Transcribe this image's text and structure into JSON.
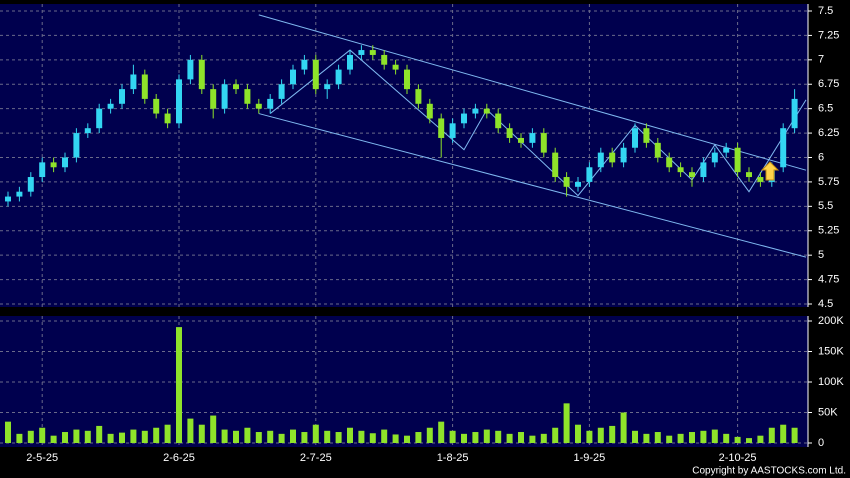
{
  "chart_data": {
    "type": "candlestick",
    "categories": [
      null,
      null,
      null,
      "2-5-25",
      null,
      null,
      null,
      null,
      null,
      null,
      null,
      null,
      null,
      null,
      null,
      "2-6-25",
      null,
      null,
      null,
      null,
      null,
      null,
      null,
      null,
      null,
      null,
      null,
      "2-7-25",
      null,
      null,
      null,
      null,
      null,
      null,
      null,
      null,
      null,
      null,
      null,
      "1-8-25",
      null,
      null,
      null,
      null,
      null,
      null,
      null,
      null,
      null,
      null,
      null,
      "1-9-25",
      null,
      null,
      null,
      null,
      null,
      null,
      null,
      null,
      null,
      null,
      null,
      null,
      "2-10-25",
      null,
      null,
      null,
      null,
      null
    ],
    "open": [
      5.55,
      5.6,
      5.65,
      5.8,
      5.95,
      5.9,
      6.0,
      6.25,
      6.3,
      6.5,
      6.55,
      6.7,
      6.85,
      6.6,
      6.45,
      6.35,
      6.8,
      7.0,
      6.7,
      6.5,
      6.75,
      6.7,
      6.55,
      6.5,
      6.6,
      6.75,
      6.9,
      7.0,
      6.7,
      6.75,
      6.9,
      7.05,
      7.1,
      7.05,
      6.95,
      6.9,
      6.7,
      6.55,
      6.4,
      6.2,
      6.35,
      6.45,
      6.5,
      6.45,
      6.3,
      6.2,
      6.15,
      6.25,
      6.05,
      5.8,
      5.7,
      5.75,
      5.9,
      6.05,
      5.95,
      6.1,
      6.3,
      6.15,
      6.0,
      5.9,
      5.85,
      5.8,
      5.95,
      6.05,
      6.1,
      5.85,
      5.8,
      5.75,
      5.9,
      6.3
    ],
    "high": [
      5.65,
      5.7,
      5.85,
      6.0,
      6.0,
      6.05,
      6.3,
      6.35,
      6.55,
      6.6,
      6.75,
      6.95,
      6.9,
      6.65,
      6.5,
      6.85,
      7.05,
      7.05,
      6.75,
      6.8,
      6.8,
      6.75,
      6.6,
      6.65,
      6.8,
      6.95,
      7.05,
      7.05,
      6.8,
      6.95,
      7.1,
      7.15,
      7.15,
      7.1,
      7.0,
      6.95,
      6.75,
      6.6,
      6.45,
      6.4,
      6.5,
      6.55,
      6.55,
      6.5,
      6.35,
      6.25,
      6.3,
      6.3,
      6.1,
      5.85,
      5.8,
      5.95,
      6.1,
      6.1,
      6.15,
      6.35,
      6.35,
      6.2,
      6.05,
      5.95,
      5.9,
      6.0,
      6.1,
      6.15,
      6.15,
      5.9,
      5.85,
      5.95,
      6.35,
      6.7
    ],
    "low": [
      5.5,
      5.55,
      5.6,
      5.75,
      5.85,
      5.85,
      5.95,
      6.2,
      6.25,
      6.45,
      6.5,
      6.65,
      6.55,
      6.4,
      6.3,
      6.3,
      6.75,
      6.65,
      6.4,
      6.45,
      6.65,
      6.5,
      6.45,
      6.45,
      6.55,
      6.7,
      6.85,
      6.65,
      6.6,
      6.7,
      6.85,
      7.0,
      7.0,
      6.9,
      6.85,
      6.65,
      6.5,
      6.35,
      6.0,
      6.15,
      6.3,
      6.4,
      6.4,
      6.25,
      6.15,
      6.1,
      6.1,
      6.0,
      5.75,
      5.6,
      5.65,
      5.7,
      5.85,
      5.9,
      5.9,
      6.05,
      6.1,
      5.95,
      5.85,
      5.8,
      5.7,
      5.75,
      5.9,
      6.0,
      5.8,
      5.75,
      5.7,
      5.7,
      5.85,
      6.25
    ],
    "close": [
      5.6,
      5.65,
      5.8,
      5.95,
      5.9,
      6.0,
      6.25,
      6.3,
      6.5,
      6.55,
      6.7,
      6.85,
      6.6,
      6.45,
      6.35,
      6.8,
      7.0,
      6.7,
      6.5,
      6.75,
      6.7,
      6.55,
      6.5,
      6.6,
      6.75,
      6.9,
      7.0,
      6.7,
      6.75,
      6.9,
      7.05,
      7.1,
      7.05,
      6.95,
      6.9,
      6.7,
      6.55,
      6.4,
      6.2,
      6.35,
      6.45,
      6.5,
      6.45,
      6.3,
      6.2,
      6.15,
      6.25,
      6.05,
      5.8,
      5.7,
      5.75,
      5.9,
      6.05,
      5.95,
      6.1,
      6.3,
      6.15,
      6.0,
      5.9,
      5.85,
      5.8,
      5.95,
      6.05,
      6.1,
      5.85,
      5.8,
      5.75,
      5.9,
      6.3,
      6.6
    ],
    "volume": [
      35000,
      15000,
      20000,
      25000,
      12000,
      18000,
      22000,
      20000,
      28000,
      15000,
      17000,
      22000,
      20000,
      25000,
      30000,
      190000,
      40000,
      30000,
      45000,
      22000,
      20000,
      25000,
      18000,
      20000,
      15000,
      22000,
      18000,
      30000,
      20000,
      18000,
      25000,
      20000,
      16000,
      22000,
      14000,
      12000,
      18000,
      25000,
      35000,
      20000,
      15000,
      18000,
      22000,
      20000,
      15000,
      18000,
      12000,
      15000,
      25000,
      65000,
      30000,
      20000,
      25000,
      28000,
      50000,
      20000,
      15000,
      18000,
      12000,
      15000,
      18000,
      20000,
      22000,
      15000,
      10000,
      8000,
      12000,
      25000,
      30000,
      25000
    ],
    "up_color": "#33d6f2",
    "down_color": "#8fe32a",
    "volume_color": "#8fe32a",
    "ylim": [
      4.5,
      7.5
    ],
    "yticks": [
      4.5,
      4.75,
      5,
      5.25,
      5.5,
      5.75,
      6,
      6.25,
      6.5,
      6.75,
      7,
      7.25,
      7.5
    ],
    "volume_ylim": [
      0,
      200000
    ],
    "volume_yticks": [
      0,
      {
        "value": 50000,
        "label": "50K"
      },
      {
        "value": 100000,
        "label": "100K"
      },
      {
        "value": 150000,
        "label": "150K"
      },
      {
        "value": 200000,
        "label": "200K"
      }
    ],
    "trendline_color": "#7fb8f0",
    "trendlines": [
      {
        "x": [
          22,
          70
        ],
        "y": [
          7.46,
          5.87
        ]
      },
      {
        "x": [
          22,
          70
        ],
        "y": [
          6.45,
          4.98
        ]
      },
      {
        "x": [
          23,
          30,
          40,
          42,
          50,
          55,
          60,
          62,
          65,
          70
        ],
        "y": [
          6.45,
          7.1,
          6.08,
          6.49,
          5.61,
          6.33,
          5.77,
          6.13,
          5.65,
          6.59
        ]
      }
    ],
    "grid": true,
    "copyright": "Copyright by AASTOCKS.com Ltd."
  }
}
